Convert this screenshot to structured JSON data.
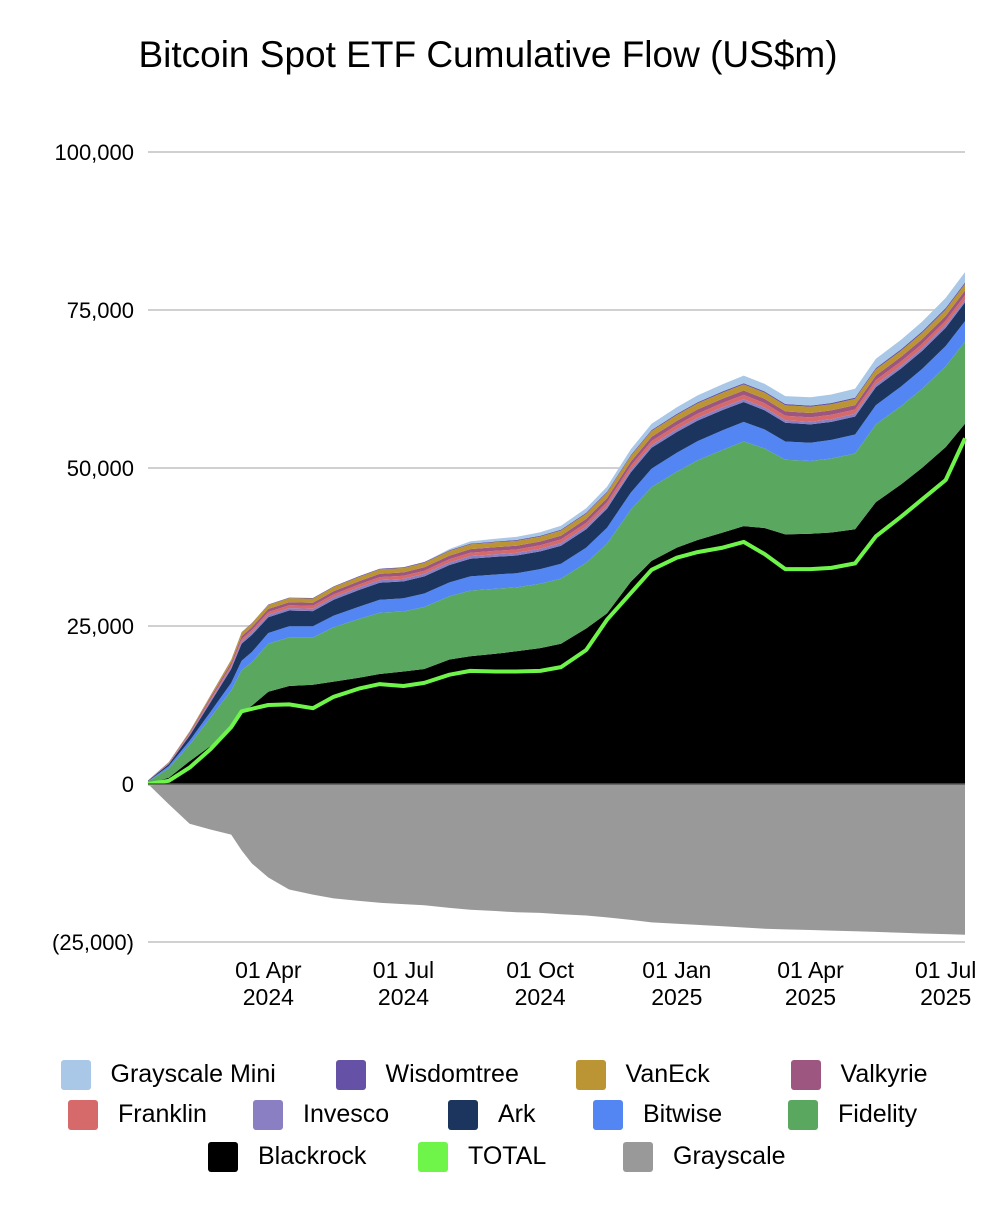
{
  "chart_data": {
    "type": "area",
    "title": "Bitcoin Spot ETF Cumulative Flow (US$m)",
    "stacked": true,
    "ylim": [
      -25000,
      100000
    ],
    "yticks": [
      {
        "value": 100000,
        "label": "100,000"
      },
      {
        "value": 75000,
        "label": "75,000"
      },
      {
        "value": 50000,
        "label": "50,000"
      },
      {
        "value": 25000,
        "label": "25,000"
      },
      {
        "value": 0,
        "label": "0"
      },
      {
        "value": -25000,
        "label": "(25,000)"
      }
    ],
    "xlim": [
      "2024-01-11",
      "2025-07-14"
    ],
    "xticks": [
      {
        "date": "2024-04-01",
        "line1": "01 Apr",
        "line2": "2024"
      },
      {
        "date": "2024-07-01",
        "line1": "01 Jul",
        "line2": "2024"
      },
      {
        "date": "2024-10-01",
        "line1": "01 Oct",
        "line2": "2024"
      },
      {
        "date": "2025-01-01",
        "line1": "01 Jan",
        "line2": "2025"
      },
      {
        "date": "2025-04-01",
        "line1": "01 Apr",
        "line2": "2025"
      },
      {
        "date": "2025-07-01",
        "line1": "01 Jul",
        "line2": "2025"
      }
    ],
    "grid": true,
    "legend_position": "bottom",
    "dates": [
      "2024-01-11",
      "2024-01-25",
      "2024-02-08",
      "2024-02-22",
      "2024-03-07",
      "2024-03-14",
      "2024-03-21",
      "2024-04-01",
      "2024-04-15",
      "2024-05-01",
      "2024-05-15",
      "2024-06-01",
      "2024-06-15",
      "2024-07-01",
      "2024-07-15",
      "2024-08-01",
      "2024-08-15",
      "2024-09-01",
      "2024-09-15",
      "2024-10-01",
      "2024-10-15",
      "2024-11-01",
      "2024-11-15",
      "2024-12-01",
      "2024-12-15",
      "2025-01-01",
      "2025-01-15",
      "2025-02-01",
      "2025-02-15",
      "2025-03-01",
      "2025-03-15",
      "2025-04-01",
      "2025-04-15",
      "2025-05-01",
      "2025-05-15",
      "2025-06-01",
      "2025-06-15",
      "2025-07-01",
      "2025-07-14"
    ],
    "series": [
      {
        "name": "Blackrock",
        "color": "#000000",
        "values": [
          100,
          1000,
          3600,
          6000,
          9000,
          11400,
          12400,
          14600,
          15500,
          15700,
          16200,
          16800,
          17400,
          17800,
          18200,
          19700,
          20200,
          20600,
          21000,
          21500,
          22200,
          24600,
          27000,
          32000,
          35300,
          37400,
          38600,
          39800,
          40800,
          40500,
          39500,
          39600,
          39800,
          40300,
          44600,
          47400,
          50000,
          53300,
          57000
        ]
      },
      {
        "name": "Fidelity",
        "color": "#5aa860",
        "values": [
          300,
          1500,
          2600,
          4500,
          5800,
          6600,
          6900,
          7600,
          7700,
          7500,
          8600,
          9300,
          9700,
          9500,
          9800,
          10000,
          10400,
          10300,
          10100,
          10200,
          10300,
          10400,
          11000,
          11400,
          11700,
          12000,
          12600,
          13100,
          13400,
          12600,
          11800,
          11500,
          11700,
          12000,
          12300,
          12400,
          12500,
          12800,
          13000
        ]
      },
      {
        "name": "Bitwise",
        "color": "#5386f3",
        "values": [
          50,
          350,
          650,
          900,
          1200,
          1500,
          1600,
          1700,
          1750,
          1750,
          1850,
          1950,
          2050,
          2100,
          2150,
          2200,
          2250,
          2250,
          2250,
          2300,
          2350,
          2400,
          2550,
          2700,
          2900,
          3000,
          3050,
          3100,
          3100,
          3000,
          2900,
          2900,
          2950,
          3000,
          3050,
          3100,
          3150,
          3200,
          3250
        ]
      },
      {
        "name": "Ark",
        "color": "#1b355f",
        "values": [
          50,
          300,
          800,
          1500,
          2200,
          2700,
          2700,
          2500,
          2500,
          2400,
          2500,
          2650,
          2700,
          2650,
          2700,
          2750,
          2800,
          2800,
          2800,
          2800,
          2850,
          2900,
          3000,
          3200,
          3300,
          3300,
          3250,
          3200,
          3150,
          3050,
          2950,
          2900,
          2850,
          2850,
          2850,
          2850,
          2850,
          2900,
          2950
        ]
      },
      {
        "name": "Invesco",
        "color": "#8b7fc4",
        "values": [
          10,
          70,
          150,
          230,
          300,
          360,
          380,
          390,
          390,
          390,
          395,
          400,
          405,
          405,
          405,
          410,
          410,
          410,
          410,
          410,
          415,
          420,
          425,
          430,
          430,
          430,
          430,
          430,
          430,
          425,
          420,
          420,
          420,
          420,
          420,
          420,
          420,
          420,
          420
        ]
      },
      {
        "name": "Franklin",
        "color": "#d66a6a",
        "values": [
          20,
          80,
          150,
          250,
          320,
          390,
          410,
          430,
          440,
          450,
          460,
          470,
          480,
          490,
          500,
          520,
          530,
          540,
          550,
          560,
          580,
          600,
          620,
          640,
          650,
          660,
          670,
          680,
          690,
          690,
          690,
          690,
          690,
          690,
          700,
          700,
          700,
          710,
          720
        ]
      },
      {
        "name": "Valkyrie",
        "color": "#9c5680",
        "values": [
          20,
          100,
          200,
          300,
          380,
          430,
          450,
          480,
          490,
          500,
          510,
          520,
          530,
          540,
          550,
          560,
          570,
          580,
          590,
          600,
          610,
          620,
          630,
          640,
          650,
          660,
          670,
          680,
          690,
          700,
          700,
          700,
          700,
          700,
          710,
          720,
          730,
          740,
          750
        ]
      },
      {
        "name": "VanEck",
        "color": "#bb9533",
        "values": [
          10,
          60,
          150,
          280,
          420,
          550,
          580,
          620,
          640,
          650,
          660,
          670,
          690,
          700,
          710,
          730,
          750,
          760,
          770,
          780,
          800,
          830,
          860,
          890,
          920,
          940,
          950,
          960,
          970,
          970,
          970,
          970,
          970,
          970,
          980,
          990,
          1000,
          1010,
          1020
        ]
      },
      {
        "name": "Wisdomtree",
        "color": "#6551a6",
        "values": [
          5,
          15,
          25,
          40,
          55,
          70,
          75,
          80,
          85,
          90,
          95,
          100,
          105,
          110,
          115,
          120,
          125,
          130,
          135,
          140,
          145,
          150,
          155,
          160,
          165,
          170,
          175,
          180,
          185,
          190,
          195,
          200,
          205,
          210,
          215,
          220,
          225,
          230,
          235
        ]
      },
      {
        "name": "Grayscale Mini",
        "color": "#a9c7e6",
        "values": [
          0,
          0,
          0,
          0,
          0,
          0,
          0,
          0,
          0,
          0,
          0,
          0,
          0,
          0,
          0,
          200,
          350,
          450,
          500,
          550,
          600,
          700,
          800,
          900,
          1000,
          1050,
          1100,
          1150,
          1200,
          1200,
          1250,
          1300,
          1350,
          1400,
          1450,
          1500,
          1550,
          1600,
          1650
        ]
      }
    ],
    "grayscale": {
      "name": "Grayscale",
      "color": "#999999",
      "values": [
        0,
        -3200,
        -6300,
        -7200,
        -8000,
        -10500,
        -12600,
        -14800,
        -16700,
        -17500,
        -18100,
        -18500,
        -18800,
        -19000,
        -19200,
        -19600,
        -19900,
        -20100,
        -20300,
        -20400,
        -20600,
        -20800,
        -21100,
        -21500,
        -21900,
        -22100,
        -22300,
        -22500,
        -22700,
        -22900,
        -23000,
        -23100,
        -23200,
        -23300,
        -23400,
        -23550,
        -23650,
        -23750,
        -23850
      ]
    },
    "total": {
      "name": "TOTAL",
      "color": "#6ff54a",
      "values": [
        0,
        500,
        2600,
        5500,
        9000,
        11500,
        11900,
        12500,
        12600,
        12000,
        13800,
        15100,
        15800,
        15500,
        16000,
        17300,
        17900,
        17800,
        17800,
        17900,
        18500,
        21200,
        26000,
        30200,
        33900,
        35800,
        36700,
        37400,
        38300,
        36400,
        34000,
        34000,
        34200,
        34900,
        39200,
        42300,
        45000,
        48100,
        54700
      ]
    }
  },
  "legend": {
    "rows": [
      [
        {
          "name": "Grayscale Mini",
          "color": "#a9c7e6"
        },
        {
          "name": "Wisdomtree",
          "color": "#6551a6"
        },
        {
          "name": "VanEck",
          "color": "#bb9533"
        },
        {
          "name": "Valkyrie",
          "color": "#9c5680"
        }
      ],
      [
        {
          "name": "Franklin",
          "color": "#d66a6a"
        },
        {
          "name": "Invesco",
          "color": "#8b7fc4"
        },
        {
          "name": "Ark",
          "color": "#1b355f"
        },
        {
          "name": "Bitwise",
          "color": "#5386f3"
        },
        {
          "name": "Fidelity",
          "color": "#5aa860"
        }
      ],
      [
        {
          "name": "Blackrock",
          "color": "#000000"
        },
        {
          "name": "TOTAL",
          "color": "#6ff54a"
        },
        {
          "name": "Grayscale",
          "color": "#999999"
        }
      ]
    ]
  }
}
